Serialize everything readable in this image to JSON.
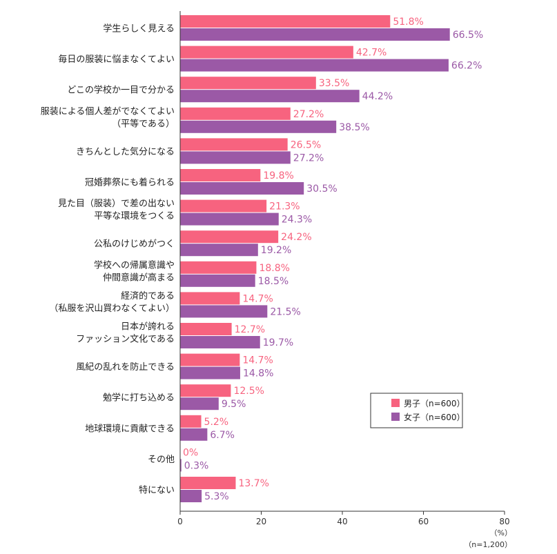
{
  "chart_data": {
    "type": "bar",
    "orientation": "horizontal",
    "categories": [
      [
        "学生らしく見える"
      ],
      [
        "毎日の服装に悩まなくてよい"
      ],
      [
        "どこの学校か一目で分かる"
      ],
      [
        "服装による個人差がでなくてよい",
        "（平等である）"
      ],
      [
        "きちんとした気分になる"
      ],
      [
        "冠婚葬祭にも着られる"
      ],
      [
        "見た目（服装）で差の出ない",
        "平等な環境をつくる"
      ],
      [
        "公私のけじめがつく"
      ],
      [
        "学校への帰属意識や",
        "仲間意識が高まる"
      ],
      [
        "経済的である",
        "（私服を沢山買わなくてよい）"
      ],
      [
        "日本が誇れる",
        "ファッション文化である"
      ],
      [
        "風紀の乱れを防止できる"
      ],
      [
        "勉学に打ち込める"
      ],
      [
        "地球環境に貢献できる"
      ],
      [
        "その他"
      ],
      [
        "特にない"
      ]
    ],
    "series": [
      {
        "name": "男子（n=600）",
        "color": "#f7637f",
        "values": [
          51.8,
          42.7,
          33.5,
          27.2,
          26.5,
          19.8,
          21.3,
          24.2,
          18.8,
          14.7,
          12.7,
          14.7,
          12.5,
          5.2,
          0,
          13.7
        ],
        "labels": [
          "51.8%",
          "42.7%",
          "33.5%",
          "27.2%",
          "26.5%",
          "19.8%",
          "21.3%",
          "24.2%",
          "18.8%",
          "14.7%",
          "12.7%",
          "14.7%",
          "12.5%",
          "5.2%",
          "0%",
          "13.7%"
        ]
      },
      {
        "name": "女子（n=600）",
        "color": "#9b59a6",
        "values": [
          66.5,
          66.2,
          44.2,
          38.5,
          27.2,
          30.5,
          24.3,
          19.2,
          18.5,
          21.5,
          19.7,
          14.8,
          9.5,
          6.7,
          0.3,
          5.3
        ],
        "labels": [
          "66.5%",
          "66.2%",
          "44.2%",
          "38.5%",
          "27.2%",
          "30.5%",
          "24.3%",
          "19.2%",
          "18.5%",
          "21.5%",
          "19.7%",
          "14.8%",
          "9.5%",
          "6.7%",
          "0.3%",
          "5.3%"
        ]
      }
    ],
    "xlim": [
      0,
      80
    ],
    "xticks": [
      0,
      20,
      40,
      60,
      80
    ],
    "xticklabels": [
      "0",
      "20",
      "40",
      "60",
      "80"
    ],
    "unit_label": "（%）",
    "sample_note": "（n=1,200）",
    "legend_position": "bottom-right",
    "grid": false
  }
}
